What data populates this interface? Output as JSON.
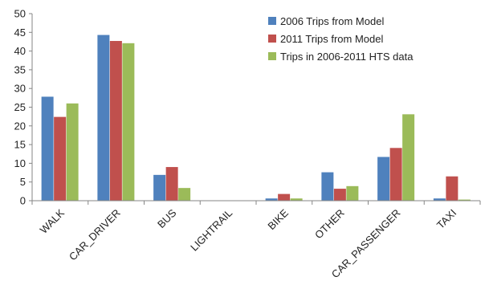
{
  "chart_data": {
    "type": "bar",
    "categories": [
      "WALK",
      "CAR_DRIVER",
      "BUS",
      "LIGHTRAIL",
      "BIKE",
      "OTHER",
      "CAR_PASSENGER",
      "TAXI"
    ],
    "series": [
      {
        "name": "2006 Trips from Model",
        "color": "#4F81BD",
        "values": [
          27.8,
          44.3,
          6.9,
          0,
          0.6,
          7.6,
          11.7,
          0.6
        ]
      },
      {
        "name": "2011 Trips from Model",
        "color": "#C0504D",
        "values": [
          22.4,
          42.7,
          9.0,
          0,
          1.8,
          3.2,
          14.1,
          6.5
        ]
      },
      {
        "name": "Trips in 2006-2011 HTS data",
        "color": "#9BBB59",
        "values": [
          26.0,
          42.1,
          3.4,
          0,
          0.6,
          3.9,
          23.1,
          0.3
        ]
      }
    ],
    "ylim": [
      0,
      50
    ],
    "yticks": [
      0,
      5,
      10,
      15,
      20,
      25,
      30,
      35,
      40,
      45,
      50
    ],
    "title": "",
    "xlabel": "",
    "ylabel": "",
    "grid": false,
    "legend_position": "top-right"
  }
}
